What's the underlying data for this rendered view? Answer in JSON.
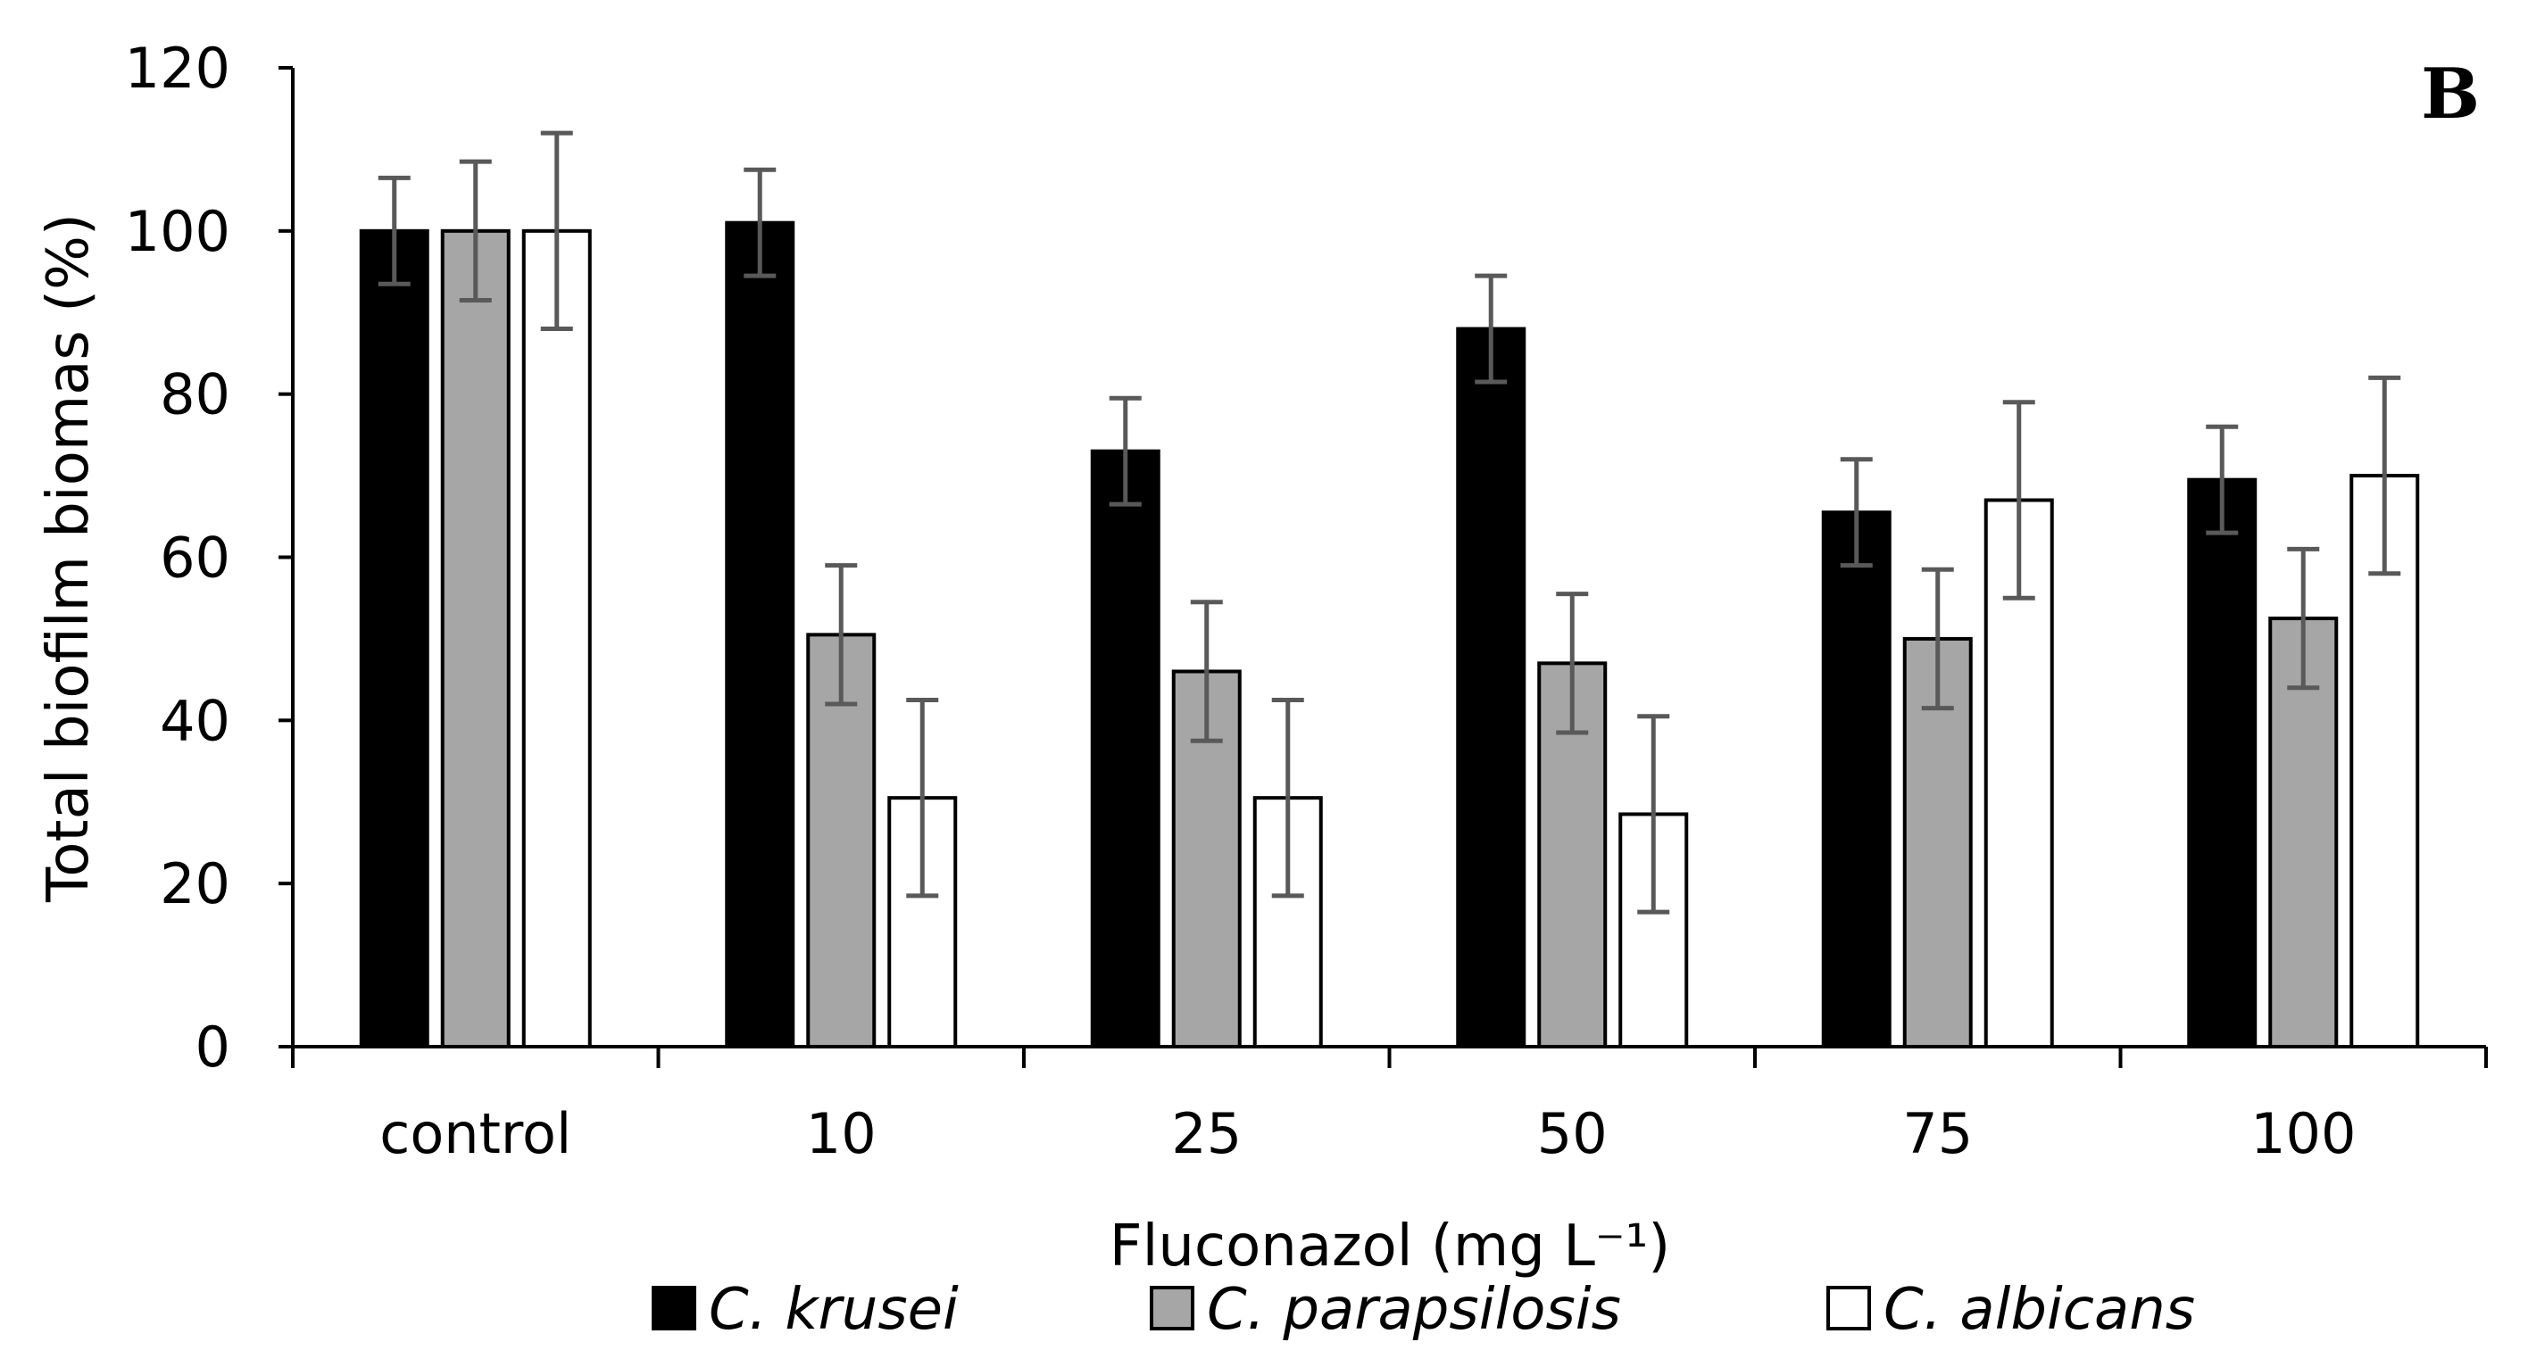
{
  "chart_data": {
    "type": "bar",
    "panel_label": "B",
    "title": "",
    "xlabel": "Fluconazol (mg L⁻¹)",
    "ylabel": "Total biofilm biomas (%)",
    "categories": [
      "control",
      "10",
      "25",
      "50",
      "75",
      "100"
    ],
    "ylim": [
      0,
      120
    ],
    "yticks": [
      0,
      20,
      40,
      60,
      80,
      100,
      120
    ],
    "grid": false,
    "legend_position": "bottom",
    "series": [
      {
        "name": "C. krusei",
        "color": "#000000",
        "values": [
          100,
          101,
          73,
          88,
          65.5,
          69.5
        ],
        "errors": [
          6.5,
          6.5,
          6.5,
          6.5,
          6.5,
          6.5
        ]
      },
      {
        "name": "C. parapsilosis",
        "color": "#a6a6a6",
        "values": [
          100,
          50.5,
          46,
          47,
          50,
          52.5
        ],
        "errors": [
          8.5,
          8.5,
          8.5,
          8.5,
          8.5,
          8.5
        ]
      },
      {
        "name": "C. albicans",
        "color": "#ffffff",
        "values": [
          100,
          30.5,
          30.5,
          28.5,
          67,
          70
        ],
        "errors": [
          12,
          12,
          12,
          12,
          12,
          12
        ]
      }
    ]
  }
}
